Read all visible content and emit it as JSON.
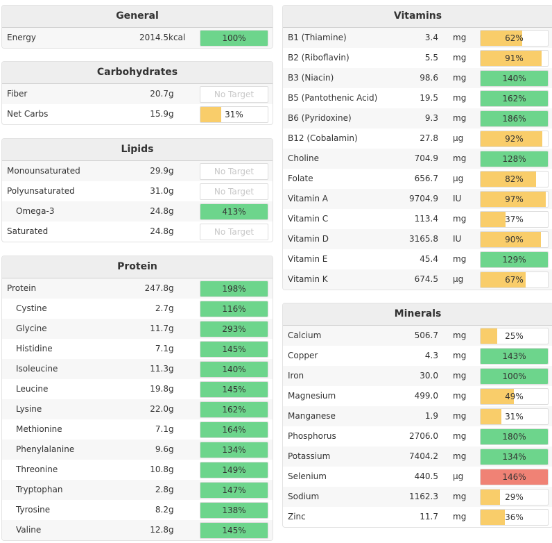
{
  "colors": {
    "good": "#6dd58c",
    "low": "#f9cd6a",
    "over": "#f08275"
  },
  "no_target_label": "No Target",
  "sections": [
    {
      "id": "general",
      "title": "General",
      "col": "left",
      "rows": [
        [
          "Energy",
          "2014.5",
          "kcal",
          100,
          "good",
          0
        ]
      ]
    },
    {
      "id": "carbohydrates",
      "title": "Carbohydrates",
      "col": "left",
      "rows": [
        [
          "Fiber",
          "20.7",
          "g",
          null,
          "none",
          0
        ],
        [
          "Net Carbs",
          "15.9",
          "g",
          31,
          "low",
          0
        ]
      ]
    },
    {
      "id": "lipids",
      "title": "Lipids",
      "col": "left",
      "rows": [
        [
          "Monounsaturated",
          "29.9",
          "g",
          null,
          "none",
          0
        ],
        [
          "Polyunsaturated",
          "31.0",
          "g",
          null,
          "none",
          0
        ],
        [
          "Omega-3",
          "24.8",
          "g",
          413,
          "good",
          1
        ],
        [
          "Saturated",
          "24.8",
          "g",
          null,
          "none",
          0
        ]
      ]
    },
    {
      "id": "protein",
      "title": "Protein",
      "col": "left",
      "rows": [
        [
          "Protein",
          "247.8",
          "g",
          198,
          "good",
          0
        ],
        [
          "Cystine",
          "2.7",
          "g",
          116,
          "good",
          1
        ],
        [
          "Glycine",
          "11.7",
          "g",
          293,
          "good",
          1
        ],
        [
          "Histidine",
          "7.1",
          "g",
          145,
          "good",
          1
        ],
        [
          "Isoleucine",
          "11.3",
          "g",
          140,
          "good",
          1
        ],
        [
          "Leucine",
          "19.8",
          "g",
          145,
          "good",
          1
        ],
        [
          "Lysine",
          "22.0",
          "g",
          162,
          "good",
          1
        ],
        [
          "Methionine",
          "7.1",
          "g",
          164,
          "good",
          1
        ],
        [
          "Phenylalanine",
          "9.6",
          "g",
          134,
          "good",
          1
        ],
        [
          "Threonine",
          "10.8",
          "g",
          149,
          "good",
          1
        ],
        [
          "Tryptophan",
          "2.8",
          "g",
          147,
          "good",
          1
        ],
        [
          "Tyrosine",
          "8.2",
          "g",
          138,
          "good",
          1
        ],
        [
          "Valine",
          "12.8",
          "g",
          145,
          "good",
          1
        ]
      ]
    },
    {
      "id": "vitamins",
      "title": "Vitamins",
      "col": "right",
      "rows": [
        [
          "B1 (Thiamine)",
          "3.4",
          "mg",
          62,
          "low",
          0
        ],
        [
          "B2 (Riboflavin)",
          "5.5",
          "mg",
          91,
          "low",
          0
        ],
        [
          "B3 (Niacin)",
          "98.6",
          "mg",
          140,
          "good",
          0
        ],
        [
          "B5 (Pantothenic Acid)",
          "19.5",
          "mg",
          162,
          "good",
          0
        ],
        [
          "B6 (Pyridoxine)",
          "9.3",
          "mg",
          186,
          "good",
          0
        ],
        [
          "B12 (Cobalamin)",
          "27.8",
          "µg",
          92,
          "low",
          0
        ],
        [
          "Choline",
          "704.9",
          "mg",
          128,
          "good",
          0
        ],
        [
          "Folate",
          "656.7",
          "µg",
          82,
          "low",
          0
        ],
        [
          "Vitamin A",
          "9704.9",
          "IU",
          97,
          "low",
          0
        ],
        [
          "Vitamin C",
          "113.4",
          "mg",
          37,
          "low",
          0
        ],
        [
          "Vitamin D",
          "3165.8",
          "IU",
          90,
          "low",
          0
        ],
        [
          "Vitamin E",
          "45.4",
          "mg",
          129,
          "good",
          0
        ],
        [
          "Vitamin K",
          "674.5",
          "µg",
          67,
          "low",
          0
        ]
      ]
    },
    {
      "id": "minerals",
      "title": "Minerals",
      "col": "right",
      "rows": [
        [
          "Calcium",
          "506.7",
          "mg",
          25,
          "low",
          0
        ],
        [
          "Copper",
          "4.3",
          "mg",
          143,
          "good",
          0
        ],
        [
          "Iron",
          "30.0",
          "mg",
          100,
          "good",
          0
        ],
        [
          "Magnesium",
          "499.0",
          "mg",
          49,
          "low",
          0
        ],
        [
          "Manganese",
          "1.9",
          "mg",
          31,
          "low",
          0
        ],
        [
          "Phosphorus",
          "2706.0",
          "mg",
          180,
          "good",
          0
        ],
        [
          "Potassium",
          "7404.2",
          "mg",
          134,
          "good",
          0
        ],
        [
          "Selenium",
          "440.5",
          "µg",
          146,
          "over",
          0
        ],
        [
          "Sodium",
          "1162.3",
          "mg",
          29,
          "low",
          0
        ],
        [
          "Zinc",
          "11.7",
          "mg",
          36,
          "low",
          0
        ]
      ]
    }
  ]
}
